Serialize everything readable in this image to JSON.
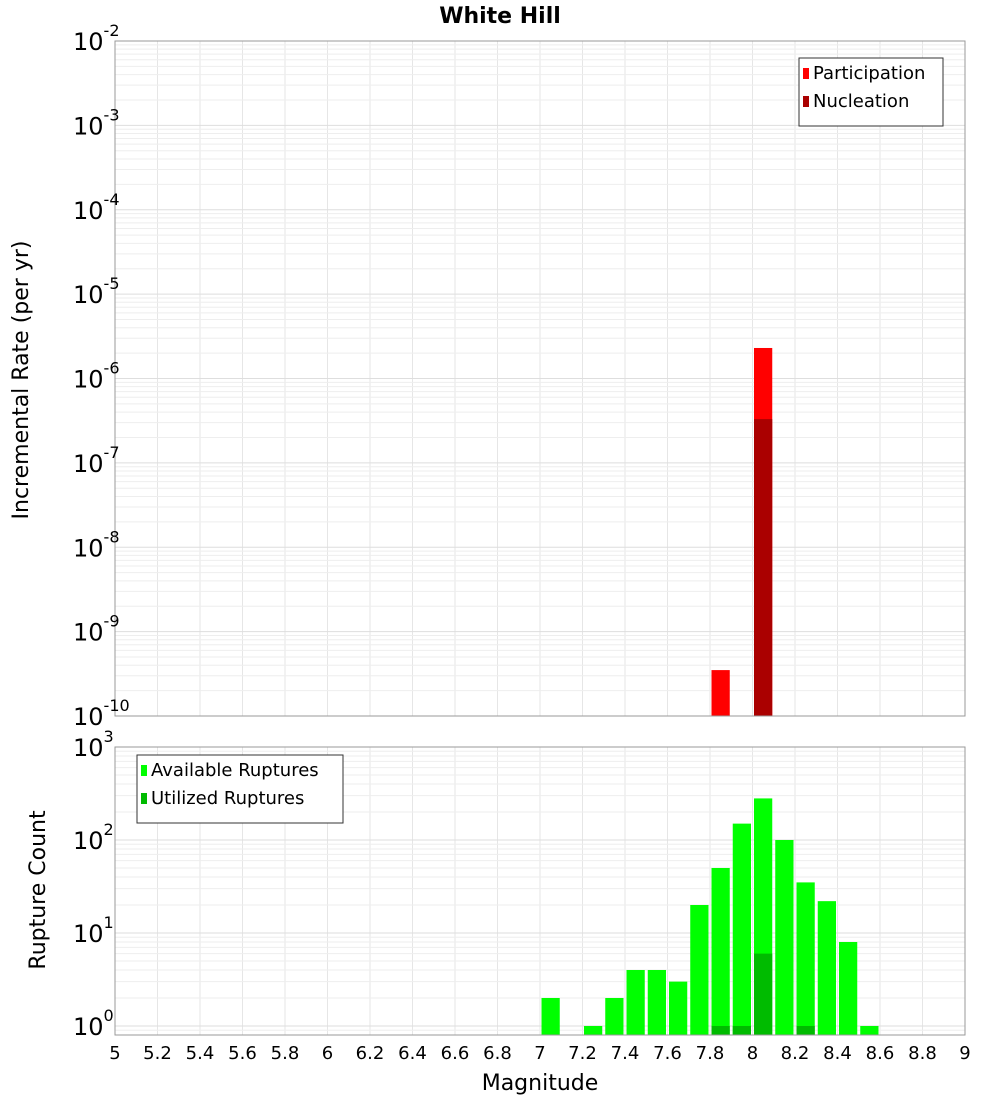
{
  "chart_data": [
    {
      "type": "bar",
      "title": "White Hill",
      "ylabel": "Incremental Rate (per yr)",
      "xlabel": "",
      "xlim": [
        5,
        9
      ],
      "ylim": [
        1e-10,
        0.01
      ],
      "yscale": "log",
      "ytick_exponents": [
        "-2",
        "-3",
        "-4",
        "-5",
        "-6",
        "-7",
        "-8",
        "-9",
        "-10"
      ],
      "ytick_base": "10",
      "grid": true,
      "legend_position": "top-right",
      "series": [
        {
          "name": "Participation",
          "color": "#ff0000",
          "x": [
            7.85,
            8.05
          ],
          "values": [
            3.5e-10,
            2.3e-06
          ]
        },
        {
          "name": "Nucleation",
          "color": "#aa0000",
          "x": [
            8.05
          ],
          "values": [
            3.3e-07
          ]
        }
      ]
    },
    {
      "type": "bar",
      "title": "",
      "ylabel": "Rupture Count",
      "xlabel": "Magnitude",
      "xlim": [
        5,
        9
      ],
      "ylim": [
        0.8,
        1000
      ],
      "yscale": "log",
      "ytick_exponents": [
        "3",
        "2",
        "1",
        "0"
      ],
      "ytick_base": "10",
      "xtick_labels": [
        "5",
        "5.2",
        "5.4",
        "5.6",
        "5.8",
        "6",
        "6.2",
        "6.4",
        "6.6",
        "6.8",
        "7",
        "7.2",
        "7.4",
        "7.6",
        "7.8",
        "8",
        "8.2",
        "8.4",
        "8.6",
        "8.8",
        "9"
      ],
      "grid": true,
      "legend_position": "top-left",
      "series": [
        {
          "name": "Available Ruptures",
          "color": "#00ff00",
          "x": [
            7.05,
            7.25,
            7.35,
            7.45,
            7.55,
            7.65,
            7.75,
            7.85,
            7.95,
            8.05,
            8.15,
            8.25,
            8.35,
            8.45,
            8.55
          ],
          "values": [
            2,
            1,
            2,
            4,
            4,
            3,
            20,
            50,
            150,
            280,
            100,
            35,
            22,
            8,
            1
          ]
        },
        {
          "name": "Utilized Ruptures",
          "color": "#00bb00",
          "x": [
            7.85,
            7.95,
            8.05,
            8.25
          ],
          "values": [
            1,
            1,
            6,
            1
          ]
        }
      ]
    }
  ]
}
